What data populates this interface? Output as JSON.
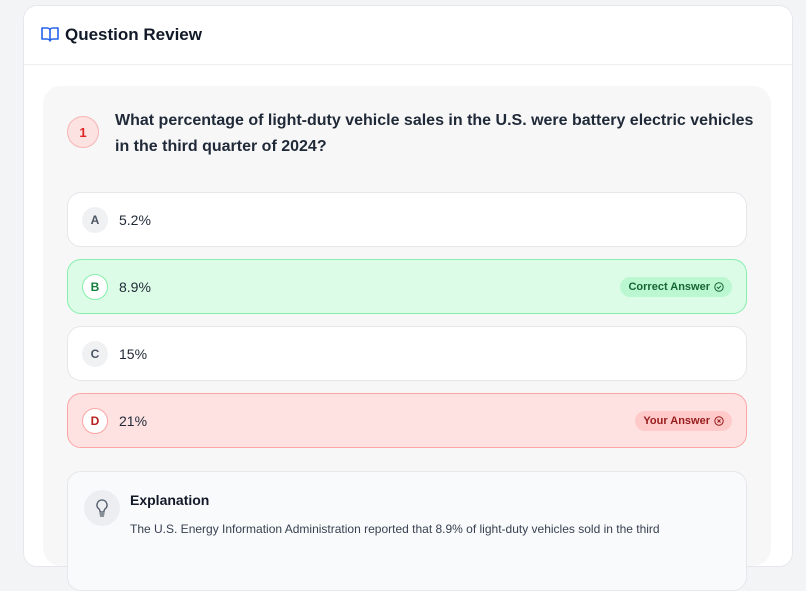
{
  "header": {
    "title": "Question Review"
  },
  "question": {
    "number": "1",
    "text": "What percentage of light-duty vehicle sales in the U.S. were battery electric vehicles in the third quarter of 2024?"
  },
  "options": [
    {
      "letter": "A",
      "text": "5.2%"
    },
    {
      "letter": "B",
      "text": "8.9%",
      "badge": "Correct Answer"
    },
    {
      "letter": "C",
      "text": "15%"
    },
    {
      "letter": "D",
      "text": "21%",
      "badge": "Your Answer"
    }
  ],
  "explanation": {
    "title": "Explanation",
    "text": "The U.S. Energy Information Administration reported that 8.9% of light-duty vehicles sold in the third"
  }
}
